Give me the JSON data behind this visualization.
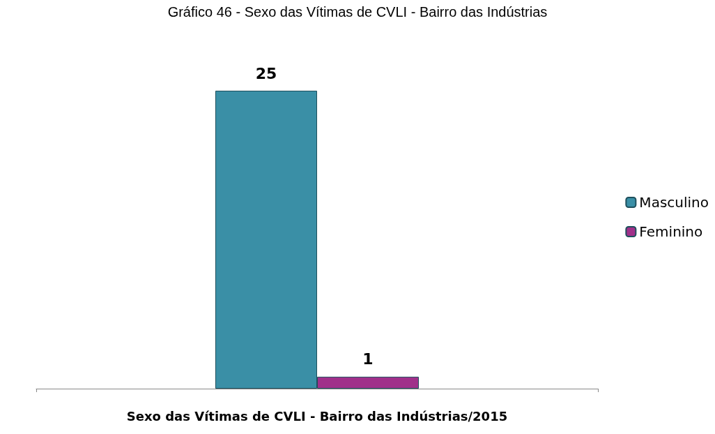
{
  "chart_data": {
    "type": "bar",
    "title": "Gráfico 46 - Sexo das Vítimas de CVLI - Bairro das Indústrias",
    "xlabel": "Sexo das Vítimas de CVLI - Bairro das Indústrias/2015",
    "categories": [
      null
    ],
    "series": [
      {
        "name": "Masculino",
        "color": "#3a8fa6",
        "values": [
          25
        ]
      },
      {
        "name": "Feminino",
        "color": "#a0308a",
        "values": [
          1
        ]
      }
    ],
    "data_labels": true,
    "legend": "right"
  }
}
